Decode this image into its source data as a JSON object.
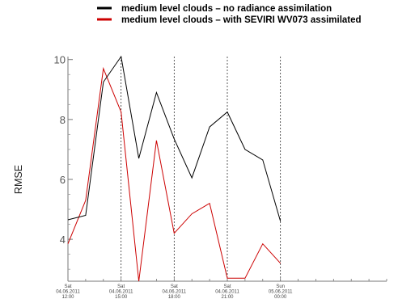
{
  "chart_data": {
    "type": "line",
    "title": "",
    "xlabel": "",
    "ylabel": "RMSE",
    "x_hours": [
      0,
      1,
      2,
      3,
      4,
      5,
      6,
      7,
      8,
      9,
      10,
      11,
      12,
      13,
      14,
      15,
      16,
      17,
      18,
      19
    ],
    "xlim": [
      0,
      18
    ],
    "ylim": [
      2.6,
      10.1
    ],
    "yticks": [
      4,
      6,
      8,
      10
    ],
    "xticks": [
      {
        "hour": 0,
        "day": "Sat",
        "date": "04.06.2011",
        "time": "12:00"
      },
      {
        "hour": 3,
        "day": "Sat",
        "date": "04.06.2011",
        "time": "15:00"
      },
      {
        "hour": 6,
        "day": "Sat",
        "date": "04.06.2011",
        "time": "18:00"
      },
      {
        "hour": 9,
        "day": "Sat",
        "date": "04.06.2011",
        "time": "21:00"
      },
      {
        "hour": 12,
        "day": "Sun",
        "date": "05.06.2011",
        "time": "00:00"
      }
    ],
    "series": [
      {
        "name": "medium level clouds – no radiance assimilation",
        "color": "#000000",
        "x": [
          0,
          1,
          2,
          3,
          4,
          5,
          6,
          7,
          8,
          9,
          10,
          11,
          12
        ],
        "values": [
          4.65,
          4.8,
          9.25,
          10.1,
          6.7,
          8.9,
          7.35,
          6.05,
          7.75,
          8.25,
          7.0,
          6.65,
          4.6
        ]
      },
      {
        "name": "medium level clouds – with SEVIRI WV073 assimilated",
        "color": "#cc0000",
        "x": [
          0,
          1,
          2,
          3,
          4,
          5,
          6,
          7,
          8,
          9,
          10,
          11,
          12
        ],
        "values": [
          3.85,
          5.3,
          9.7,
          8.25,
          2.6,
          7.3,
          4.2,
          4.85,
          5.2,
          2.7,
          2.7,
          3.85,
          3.2
        ]
      }
    ],
    "legend_position": "top",
    "grid": "vertical dashed at labeled ticks"
  }
}
